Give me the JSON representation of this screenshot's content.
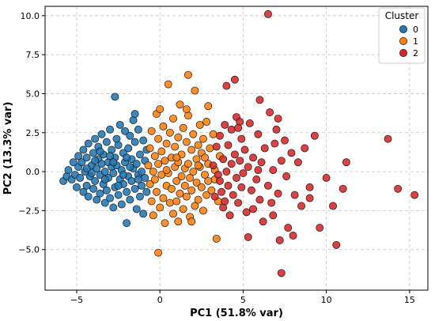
{
  "chart_data": {
    "type": "scatter",
    "xlabel": "PC1 (51.8% var)",
    "ylabel": "PC2 (13.3% var)",
    "xlim": [
      -6.9,
      16.1
    ],
    "ylim": [
      -7.6,
      10.6
    ],
    "xticks": [
      -5,
      0,
      5,
      10,
      15
    ],
    "xtick_labels": [
      "−5",
      "0",
      "5",
      "10",
      "15"
    ],
    "yticks": [
      -5.0,
      -2.5,
      0.0,
      2.5,
      5.0,
      7.5,
      10.0
    ],
    "ytick_labels": [
      "−5.0",
      "−2.5",
      "0.0",
      "2.5",
      "5.0",
      "7.5",
      "10.0"
    ],
    "grid": true,
    "legend": {
      "title": "Cluster",
      "position": "top-right"
    },
    "series": [
      {
        "name": "0",
        "color": "#1f77b4",
        "points": [
          [
            -5.8,
            -0.6
          ],
          [
            -5.6,
            -0.3
          ],
          [
            -5.5,
            0.1
          ],
          [
            -5.3,
            -0.5
          ],
          [
            -5.2,
            0.6
          ],
          [
            -5.1,
            -0.2
          ],
          [
            -5.0,
            -1.0
          ],
          [
            -4.9,
            0.3
          ],
          [
            -4.9,
            1.0
          ],
          [
            -4.8,
            -0.4
          ],
          [
            -4.7,
            0.6
          ],
          [
            -4.6,
            -1.3
          ],
          [
            -4.6,
            1.4
          ],
          [
            -4.5,
            0.0
          ],
          [
            -4.4,
            -0.9
          ],
          [
            -4.4,
            0.9
          ],
          [
            -4.3,
            -1.6
          ],
          [
            -4.3,
            1.8
          ],
          [
            -4.2,
            -0.3
          ],
          [
            -4.1,
            0.4
          ],
          [
            -4.0,
            -1.1
          ],
          [
            -4.0,
            1.2
          ],
          [
            -3.9,
            2.1
          ],
          [
            -3.9,
            -0.6
          ],
          [
            -3.8,
            0.2
          ],
          [
            -3.8,
            -1.8
          ],
          [
            -3.7,
            0.8
          ],
          [
            -3.7,
            1.6
          ],
          [
            -3.6,
            -0.2
          ],
          [
            -3.6,
            -1.4
          ],
          [
            -3.5,
            0.5
          ],
          [
            -3.5,
            2.4
          ],
          [
            -3.4,
            -0.8
          ],
          [
            -3.4,
            1.1
          ],
          [
            -3.3,
            -2.0
          ],
          [
            -3.3,
            0.0
          ],
          [
            -3.2,
            1.9
          ],
          [
            -3.2,
            -1.2
          ],
          [
            -3.1,
            0.6
          ],
          [
            -3.1,
            -0.4
          ],
          [
            -3.0,
            2.7
          ],
          [
            -3.0,
            -1.7
          ],
          [
            -2.9,
            0.3
          ],
          [
            -2.9,
            1.4
          ],
          [
            -2.8,
            -2.3
          ],
          [
            -2.8,
            -0.1
          ],
          [
            -2.7,
            0.9
          ],
          [
            -2.7,
            -1.0
          ],
          [
            -2.6,
            2.1
          ],
          [
            -2.6,
            0.4
          ],
          [
            -2.5,
            -1.5
          ],
          [
            -2.5,
            1.7
          ],
          [
            -2.4,
            -0.5
          ],
          [
            -2.4,
            3.0
          ],
          [
            -2.3,
            0.1
          ],
          [
            -2.3,
            -2.1
          ],
          [
            -2.2,
            1.2
          ],
          [
            -2.2,
            -0.8
          ],
          [
            -2.1,
            2.6
          ],
          [
            -2.1,
            0.6
          ],
          [
            -2.0,
            -1.3
          ],
          [
            -2.0,
            -3.3
          ],
          [
            -1.9,
            1.5
          ],
          [
            -1.9,
            -0.3
          ],
          [
            -1.8,
            2.3
          ],
          [
            -1.8,
            -1.8
          ],
          [
            -1.7,
            0.8
          ],
          [
            -1.7,
            -0.6
          ],
          [
            -1.6,
            3.3
          ],
          [
            -1.6,
            0.2
          ],
          [
            -1.5,
            -1.1
          ],
          [
            -1.5,
            1.9
          ],
          [
            -1.4,
            -2.4
          ],
          [
            -1.4,
            0.5
          ],
          [
            -1.3,
            -0.2
          ],
          [
            -1.3,
            2.7
          ],
          [
            -1.2,
            1.1
          ],
          [
            -1.2,
            -1.6
          ],
          [
            -1.1,
            0.0
          ],
          [
            -1.1,
            -0.9
          ],
          [
            -1.0,
            2.0
          ],
          [
            -1.0,
            -2.7
          ],
          [
            -0.9,
            0.7
          ],
          [
            -0.9,
            -0.4
          ],
          [
            -0.8,
            1.4
          ],
          [
            -0.8,
            -1.3
          ],
          [
            -2.7,
            4.8
          ],
          [
            -1.5,
            3.7
          ],
          [
            -3.3,
            -0.5
          ],
          [
            -3.9,
            0.7
          ],
          [
            -2.2,
            -0.2
          ],
          [
            -3.0,
            1.0
          ],
          [
            -1.8,
            0.3
          ],
          [
            -4.1,
            -0.1
          ],
          [
            -2.5,
            -0.9
          ],
          [
            -3.6,
            1.3
          ],
          [
            -2.0,
            0.9
          ],
          [
            -1.3,
            -0.5
          ],
          [
            -4.4,
            0.2
          ],
          [
            -2.8,
            0.6
          ]
        ]
      },
      {
        "name": "1",
        "color": "#ff7f0e",
        "points": [
          [
            -0.7,
            0.4
          ],
          [
            -0.6,
            -0.8
          ],
          [
            -0.6,
            1.5
          ],
          [
            -0.5,
            -1.9
          ],
          [
            -0.5,
            2.6
          ],
          [
            -0.4,
            0.0
          ],
          [
            -0.4,
            -2.8
          ],
          [
            -0.3,
            1.0
          ],
          [
            -0.3,
            -0.5
          ],
          [
            -0.2,
            3.7
          ],
          [
            -0.2,
            -1.3
          ],
          [
            -0.1,
            2.1
          ],
          [
            -0.1,
            0.5
          ],
          [
            0.0,
            -2.3
          ],
          [
            0.0,
            4.0
          ],
          [
            0.1,
            -0.2
          ],
          [
            0.1,
            1.3
          ],
          [
            0.2,
            -1.7
          ],
          [
            0.2,
            2.9
          ],
          [
            0.3,
            0.7
          ],
          [
            0.3,
            -3.3
          ],
          [
            0.4,
            -0.9
          ],
          [
            0.4,
            1.8
          ],
          [
            0.5,
            5.6
          ],
          [
            0.5,
            -0.1
          ],
          [
            0.6,
            -2.0
          ],
          [
            0.6,
            2.5
          ],
          [
            0.7,
            0.9
          ],
          [
            0.7,
            -1.1
          ],
          [
            0.8,
            3.4
          ],
          [
            0.8,
            -2.7
          ],
          [
            0.9,
            0.3
          ],
          [
            0.9,
            1.6
          ],
          [
            1.0,
            -0.6
          ],
          [
            1.0,
            -1.9
          ],
          [
            1.1,
            2.2
          ],
          [
            1.1,
            0.6
          ],
          [
            1.2,
            -1.4
          ],
          [
            1.2,
            4.3
          ],
          [
            1.3,
            -0.3
          ],
          [
            1.3,
            1.1
          ],
          [
            1.4,
            -2.4
          ],
          [
            1.4,
            2.8
          ],
          [
            1.5,
            0.2
          ],
          [
            1.5,
            -0.9
          ],
          [
            1.6,
            1.9
          ],
          [
            1.6,
            -1.6
          ],
          [
            1.7,
            0.5
          ],
          [
            1.7,
            3.6
          ],
          [
            1.8,
            -2.9
          ],
          [
            1.8,
            -0.4
          ],
          [
            1.9,
            1.4
          ],
          [
            1.9,
            -1.2
          ],
          [
            2.0,
            2.4
          ],
          [
            2.0,
            0.0
          ],
          [
            2.1,
            -2.2
          ],
          [
            2.1,
            5.2
          ],
          [
            2.2,
            0.8
          ],
          [
            2.2,
            -0.7
          ],
          [
            2.3,
            1.7
          ],
          [
            2.3,
            -1.8
          ],
          [
            2.4,
            3.0
          ],
          [
            2.4,
            0.3
          ],
          [
            2.5,
            -1.0
          ],
          [
            2.5,
            1.2
          ],
          [
            2.6,
            -2.5
          ],
          [
            2.6,
            2.1
          ],
          [
            2.7,
            -0.2
          ],
          [
            2.7,
            0.9
          ],
          [
            2.8,
            -1.5
          ],
          [
            2.8,
            3.2
          ],
          [
            2.9,
            0.5
          ],
          [
            2.9,
            -0.6
          ],
          [
            3.0,
            1.5
          ],
          [
            3.1,
            -1.2
          ],
          [
            3.2,
            2.4
          ],
          [
            3.3,
            0.1
          ],
          [
            3.4,
            -4.3
          ],
          [
            3.5,
            -1.9
          ],
          [
            3.6,
            1.0
          ],
          [
            1.7,
            6.2
          ],
          [
            1.6,
            4.0
          ],
          [
            2.9,
            4.2
          ],
          [
            1.1,
            -3.2
          ],
          [
            -0.1,
            -5.2
          ],
          [
            1.9,
            -3.2
          ],
          [
            3.3,
            -0.5
          ],
          [
            0.4,
            0.1
          ],
          [
            2.3,
            0.4
          ],
          [
            1.0,
            0.9
          ]
        ]
      },
      {
        "name": "2",
        "color": "#d62728",
        "points": [
          [
            3.2,
            0.4
          ],
          [
            3.3,
            -1.6
          ],
          [
            3.4,
            1.6
          ],
          [
            3.5,
            -0.2
          ],
          [
            3.6,
            2.3
          ],
          [
            3.7,
            -1.3
          ],
          [
            3.8,
            0.8
          ],
          [
            3.8,
            -2.3
          ],
          [
            3.9,
            3.0
          ],
          [
            4.0,
            0.0
          ],
          [
            4.1,
            -0.9
          ],
          [
            4.1,
            1.7
          ],
          [
            4.2,
            -2.8
          ],
          [
            4.3,
            0.5
          ],
          [
            4.3,
            2.7
          ],
          [
            4.4,
            -1.5
          ],
          [
            4.5,
            1.1
          ],
          [
            4.6,
            -0.4
          ],
          [
            4.6,
            3.5
          ],
          [
            4.7,
            -2.0
          ],
          [
            4.8,
            0.7
          ],
          [
            4.9,
            -1.0
          ],
          [
            4.9,
            2.1
          ],
          [
            5.0,
            -0.1
          ],
          [
            5.1,
            1.4
          ],
          [
            5.2,
            -2.6
          ],
          [
            5.3,
            0.3
          ],
          [
            5.4,
            3.1
          ],
          [
            5.5,
            -1.2
          ],
          [
            5.6,
            0.9
          ],
          [
            5.8,
            -0.5
          ],
          [
            5.9,
            2.4
          ],
          [
            6.0,
            -1.8
          ],
          [
            6.1,
            0.6
          ],
          [
            6.2,
            -3.2
          ],
          [
            6.3,
            1.5
          ],
          [
            6.5,
            -0.9
          ],
          [
            6.6,
            3.8
          ],
          [
            6.7,
            -2.0
          ],
          [
            6.8,
            0.1
          ],
          [
            6.9,
            1.8
          ],
          [
            7.1,
            -1.4
          ],
          [
            7.2,
            -4.4
          ],
          [
            7.3,
            0.7
          ],
          [
            7.5,
            2.0
          ],
          [
            7.6,
            -0.3
          ],
          [
            7.7,
            -3.6
          ],
          [
            7.9,
            1.2
          ],
          [
            8.1,
            -1.5
          ],
          [
            8.3,
            0.6
          ],
          [
            8.5,
            -2.2
          ],
          [
            8.7,
            1.5
          ],
          [
            9.0,
            -1.0
          ],
          [
            9.3,
            2.3
          ],
          [
            9.6,
            -3.6
          ],
          [
            10.0,
            -0.4
          ],
          [
            10.4,
            -2.2
          ],
          [
            10.6,
            -4.7
          ],
          [
            11.2,
            0.6
          ],
          [
            11.0,
            -1.1
          ],
          [
            4.0,
            5.5
          ],
          [
            4.5,
            5.9
          ],
          [
            6.0,
            4.6
          ],
          [
            6.5,
            10.1
          ],
          [
            7.1,
            3.4
          ],
          [
            7.3,
            -6.5
          ],
          [
            8.0,
            -4.1
          ],
          [
            4.8,
            3.2
          ],
          [
            5.6,
            -2.4
          ],
          [
            3.9,
            -1.9
          ],
          [
            13.7,
            2.1
          ],
          [
            14.3,
            -1.1
          ],
          [
            15.3,
            -1.5
          ],
          [
            5.3,
            -4.2
          ],
          [
            6.8,
            -2.8
          ],
          [
            7.0,
            2.7
          ],
          [
            9.0,
            -1.7
          ],
          [
            3.6,
            -0.6
          ],
          [
            4.7,
            2.8
          ],
          [
            5.9,
            0.1
          ]
        ]
      }
    ]
  }
}
